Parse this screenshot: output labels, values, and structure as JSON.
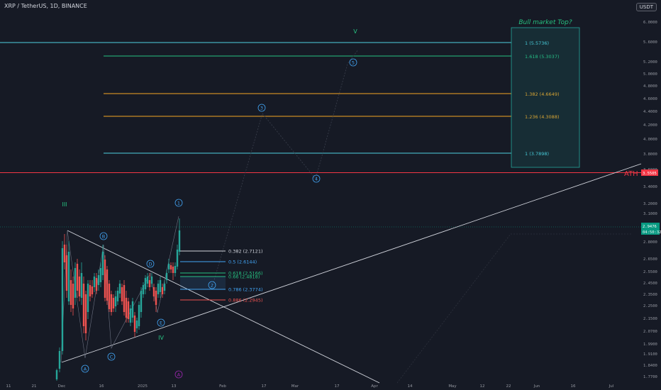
{
  "header": {
    "symbol": "XRP / TetherUS, 1D, BINANCE",
    "currency": "USDT"
  },
  "price_scale": {
    "ticks": [
      "6.0000",
      "5.6000",
      "5.2000",
      "5.0000",
      "4.8000",
      "4.6000",
      "4.4000",
      "4.2000",
      "4.0000",
      "3.8000",
      "3.6000",
      "3.4000",
      "3.2000",
      "3.1000",
      "2.8000",
      "2.6500",
      "2.5500",
      "2.4500",
      "2.3500",
      "2.2500",
      "2.1500",
      "2.0700",
      "1.9900",
      "1.9100",
      "1.8400",
      "1.7700"
    ],
    "ath_value": "3.5505",
    "last_price": "2.9476",
    "countdown": "04:50:32"
  },
  "time_axis": [
    "11",
    "21",
    "Dec",
    "16",
    "2025",
    "13",
    "Feb",
    "17",
    "Mar",
    "17",
    "Apr",
    "14",
    "May",
    "12",
    "22",
    "Jun",
    "16",
    "Jul"
  ],
  "fib_levels": [
    {
      "label": "1 (5.5736)",
      "color": "#4dd0e1"
    },
    {
      "label": "1.618 (5.3037)",
      "color": "#26c281"
    },
    {
      "label": "1.382 (4.6649)",
      "color": "#f5a623"
    },
    {
      "label": "1.236 (4.3088)",
      "color": "#f5a623"
    },
    {
      "label": "1 (3.7898)",
      "color": "#4dd0e1"
    }
  ],
  "retracements": [
    {
      "label": "0.382 (2.7121)",
      "color": "#d1d4dc"
    },
    {
      "label": "0.5 (2.6144)",
      "color": "#42a5f5"
    },
    {
      "label": "0.618 (2.5166)",
      "color": "#26c281"
    },
    {
      "label": "0.66 (2.4818)",
      "color": "#26c281"
    },
    {
      "label": "0.786 (2.3774)",
      "color": "#42a5f5"
    },
    {
      "label": "0.886 (2.2945)",
      "color": "#ef5350"
    }
  ],
  "annotations": {
    "box_title": "Bull market Top?",
    "ath_label": "ATH",
    "wave_v": "V",
    "wave_iii": "III",
    "wave_iv": "IV"
  },
  "wave_markers": [
    "1",
    "2",
    "3",
    "4",
    "5",
    "A",
    "B",
    "C",
    "D",
    "E",
    "A",
    "B",
    "C"
  ],
  "colors": {
    "up": "#26a69a",
    "down": "#ef5350",
    "ath": "#f23645",
    "bg": "#161a25"
  }
}
